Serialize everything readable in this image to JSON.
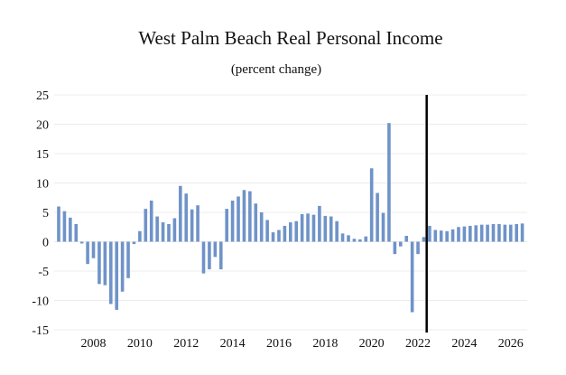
{
  "chart_data": {
    "type": "bar",
    "title": "West Palm Beach Real Personal Income",
    "subtitle": "(percent change)",
    "xlabel": "",
    "ylabel": "",
    "ylim": [
      -15,
      25
    ],
    "yticks": [
      "25",
      "20",
      "15",
      "10",
      "5",
      "0",
      "-5",
      "-10",
      "-15"
    ],
    "ytick_values": [
      25,
      20,
      15,
      10,
      5,
      0,
      -5,
      -10,
      -15
    ],
    "xticks": [
      "2008",
      "2010",
      "2012",
      "2014",
      "2016",
      "2018",
      "2020",
      "2022",
      "2024",
      "2026"
    ],
    "x_start": "2006Q3",
    "grid": true,
    "forecast_divider": "2022Q2",
    "bar_color": "#6f93c8",
    "series": [
      {
        "values": [
          6.0,
          5.2,
          4.1,
          3.0,
          -0.3,
          -3.8,
          -2.8,
          -7.2,
          -7.4,
          -10.6,
          -11.6,
          -8.5,
          -6.2,
          -0.4,
          1.8,
          5.6,
          7.0,
          4.3,
          3.3,
          3.0,
          4.0,
          9.5,
          8.2,
          5.5,
          6.2,
          -5.4,
          -4.7,
          -2.6,
          -4.7,
          5.6,
          7.0,
          7.7,
          8.8,
          8.6,
          6.5,
          5.0,
          3.7,
          1.6,
          2.0,
          2.7,
          3.3,
          3.5,
          4.7,
          4.8,
          4.6,
          6.1,
          4.4,
          4.3,
          3.5,
          1.4,
          1.1,
          0.5,
          0.4,
          0.9,
          12.5,
          8.3,
          4.9,
          20.2,
          -2.1,
          -0.8,
          1.0,
          -12.0,
          -2.1,
          0.8,
          2.7,
          2.0,
          1.9,
          1.8,
          2.1,
          2.5,
          2.6,
          2.7,
          2.8,
          2.9,
          2.9,
          3.0,
          3.0,
          2.9,
          2.9,
          3.0,
          3.1
        ]
      }
    ]
  }
}
